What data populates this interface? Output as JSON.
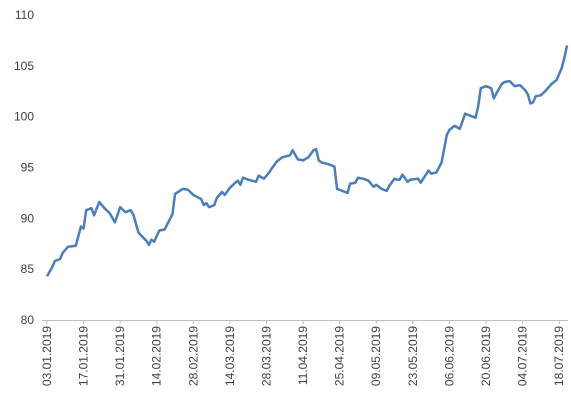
{
  "chart_data": {
    "type": "line",
    "x": [
      "03.01.2019",
      "05.01.2019",
      "06.01.2019",
      "08.01.2019",
      "09.01.2019",
      "11.01.2019",
      "14.01.2019",
      "16.01.2019",
      "17.01.2019",
      "18.01.2019",
      "20.01.2019",
      "21.01.2019",
      "23.01.2019",
      "25.01.2019",
      "27.01.2019",
      "29.01.2019",
      "31.01.2019",
      "02.02.2019",
      "04.02.2019",
      "05.02.2019",
      "07.02.2019",
      "10.02.2019",
      "11.02.2019",
      "12.02.2019",
      "13.02.2019",
      "15.02.2019",
      "17.02.2019",
      "19.02.2019",
      "20.02.2019",
      "21.02.2019",
      "24.02.2019",
      "26.02.2019",
      "28.02.2019",
      "03.03.2019",
      "04.03.2019",
      "05.03.2019",
      "06.03.2019",
      "08.03.2019",
      "09.03.2019",
      "11.03.2019",
      "12.03.2019",
      "14.03.2019",
      "16.03.2019",
      "17.03.2019",
      "18.03.2019",
      "19.03.2019",
      "21.03.2019",
      "24.03.2019",
      "25.03.2019",
      "27.03.2019",
      "29.03.2019",
      "30.03.2019",
      "01.04.2019",
      "03.04.2019",
      "06.04.2019",
      "07.04.2019",
      "09.04.2019",
      "11.04.2019",
      "13.04.2019",
      "15.04.2019",
      "16.04.2019",
      "17.04.2019",
      "18.04.2019",
      "21.04.2019",
      "23.04.2019",
      "24.04.2019",
      "26.04.2019",
      "28.04.2019",
      "29.04.2019",
      "01.05.2019",
      "02.05.2019",
      "04.05.2019",
      "06.05.2019",
      "08.05.2019",
      "09.05.2019",
      "11.05.2019",
      "13.05.2019",
      "14.05.2019",
      "16.05.2019",
      "17.05.2019",
      "18.05.2019",
      "19.05.2019",
      "21.05.2019",
      "22.05.2019",
      "25.05.2019",
      "26.05.2019",
      "27.05.2019",
      "29.05.2019",
      "30.05.2019",
      "01.06.2019",
      "03.06.2019",
      "05.06.2019",
      "06.06.2019",
      "08.06.2019",
      "10.06.2019",
      "12.06.2019",
      "14.06.2019",
      "16.06.2019",
      "17.06.2019",
      "18.06.2019",
      "20.06.2019",
      "22.06.2019",
      "23.06.2019",
      "24.06.2019",
      "26.06.2019",
      "27.06.2019",
      "29.06.2019",
      "01.07.2019",
      "03.07.2019",
      "05.07.2019",
      "06.07.2019",
      "07.07.2019",
      "08.07.2019",
      "09.07.2019",
      "11.07.2019",
      "13.07.2019",
      "15.07.2019",
      "17.07.2019",
      "19.07.2019",
      "20.07.2019",
      "21.07.2019"
    ],
    "series": [
      {
        "color": "#4a7ebb",
        "values": [
          84.3,
          85.2,
          85.8,
          86.0,
          86.6,
          87.2,
          87.3,
          89.2,
          89.0,
          90.8,
          91.0,
          90.3,
          91.6,
          91.0,
          90.5,
          89.6,
          91.1,
          90.6,
          90.8,
          90.4,
          88.6,
          87.8,
          87.4,
          87.9,
          87.7,
          88.8,
          88.9,
          89.9,
          90.4,
          92.4,
          92.9,
          92.8,
          92.3,
          91.9,
          91.3,
          91.5,
          91.1,
          91.3,
          92.0,
          92.6,
          92.3,
          93.0,
          93.5,
          93.7,
          93.3,
          94.0,
          93.8,
          93.6,
          94.2,
          93.9,
          94.5,
          94.9,
          95.6,
          96.0,
          96.2,
          96.7,
          95.8,
          95.7,
          96.0,
          96.7,
          96.8,
          95.7,
          95.5,
          95.3,
          95.1,
          92.9,
          92.7,
          92.5,
          93.4,
          93.5,
          94.0,
          93.9,
          93.7,
          93.1,
          93.3,
          92.9,
          92.7,
          93.2,
          93.9,
          93.8,
          93.8,
          94.3,
          93.6,
          93.8,
          93.9,
          93.5,
          93.9,
          94.7,
          94.4,
          94.5,
          95.5,
          98.2,
          98.7,
          99.1,
          98.8,
          100.3,
          100.1,
          99.9,
          101.0,
          102.8,
          103.0,
          102.8,
          101.8,
          102.3,
          103.2,
          103.4,
          103.5,
          103.0,
          103.1,
          102.6,
          102.2,
          101.3,
          101.4,
          102.0,
          102.1,
          102.6,
          103.2,
          103.6,
          104.8,
          105.8,
          107.0
        ]
      }
    ],
    "xlim": [
      "03.01.2019",
      "21.07.2019"
    ],
    "xticks": [
      "03.01.2019",
      "17.01.2019",
      "31.01.2019",
      "14.02.2019",
      "28.02.2019",
      "14.03.2019",
      "28.03.2019",
      "11.04.2019",
      "25.04.2019",
      "09.05.2019",
      "23.05.2019",
      "06.06.2019",
      "20.06.2019",
      "04.07.2019",
      "18.07.2019"
    ],
    "ylim": [
      80,
      110
    ],
    "yticks": [
      80,
      85,
      90,
      95,
      100,
      105,
      110
    ],
    "grid": false
  }
}
